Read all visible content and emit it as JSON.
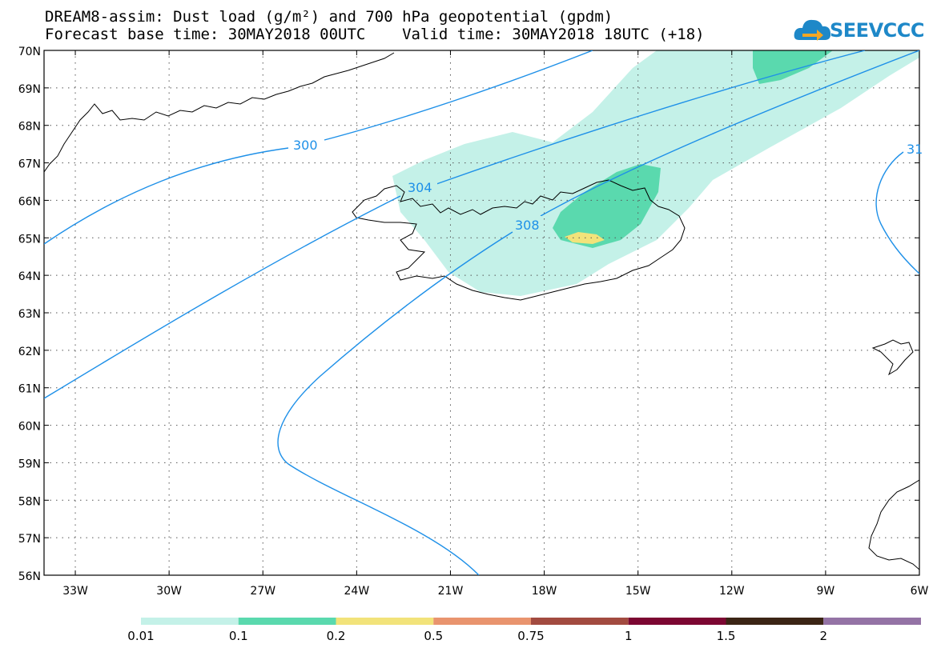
{
  "header": {
    "title_line1": "DREAM8-assim: Dust load (g/m²) and 700 hPa geopotential (gpdm)",
    "title_line2": "Forecast base time: 30MAY2018 00UTC    Valid time: 30MAY2018 18UTC (+18)",
    "logo_text": "SEEVCCC"
  },
  "map": {
    "lat_labels": [
      "70N",
      "69N",
      "68N",
      "67N",
      "66N",
      "65N",
      "64N",
      "63N",
      "62N",
      "61N",
      "60N",
      "59N",
      "58N",
      "57N",
      "56N"
    ],
    "lon_labels": [
      "33W",
      "30W",
      "27W",
      "24W",
      "21W",
      "18W",
      "15W",
      "12W",
      "9W",
      "6W"
    ],
    "contour_labels": [
      "300",
      "304",
      "308",
      "31"
    ]
  },
  "legend": {
    "thresholds": [
      "0.01",
      "0.1",
      "0.2",
      "0.5",
      "0.75",
      "1",
      "1.5",
      "2"
    ],
    "colors": [
      "#c4f1e8",
      "#5ad9ae",
      "#f2e37a",
      "#e9946e",
      "#a24b40",
      "#7c0732",
      "#3b2515",
      "#9473a5"
    ]
  },
  "colors": {
    "contour": "#1e90e8",
    "dust_low": "#c4f1e8",
    "dust_mid": "#5ad9ae",
    "dust_high": "#f2e37a"
  }
}
